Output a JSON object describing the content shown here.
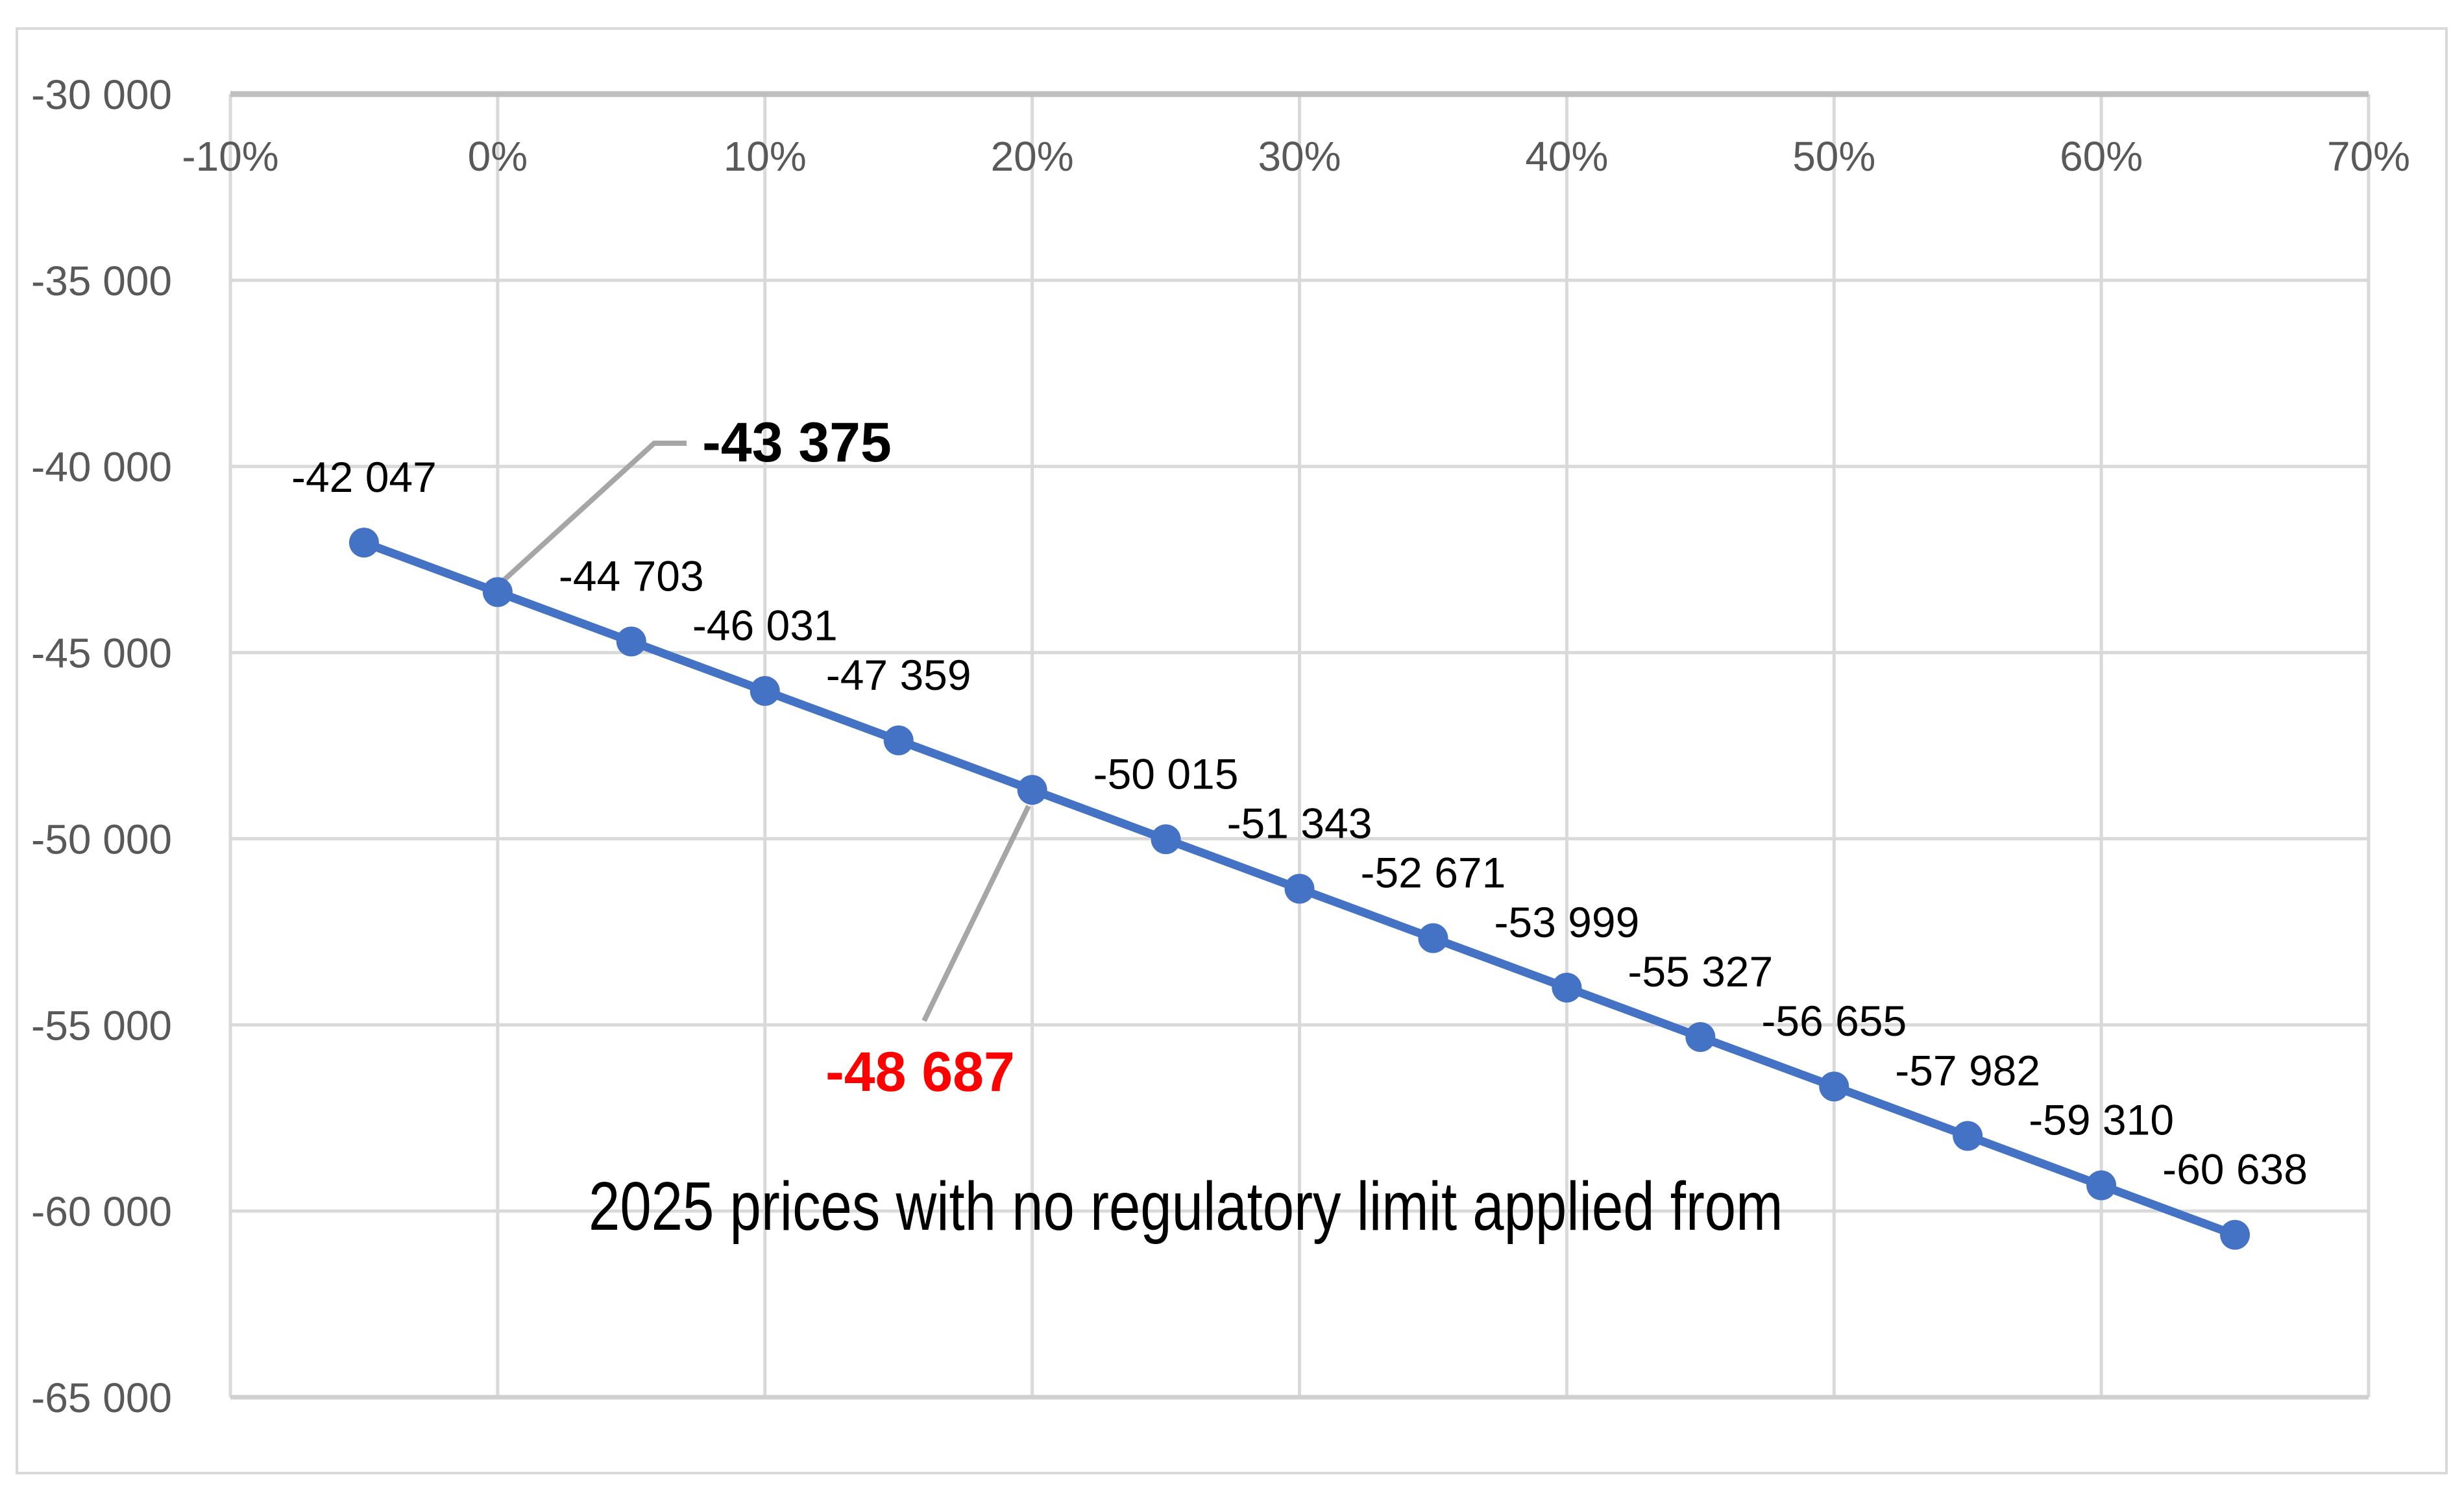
{
  "chart_data": {
    "type": "line",
    "title": "",
    "xlabel": "",
    "ylabel": "",
    "xlim": [
      -10,
      70
    ],
    "ylim": [
      -65000,
      -30000
    ],
    "grid": true,
    "legend_position": "none",
    "x_ticks": [
      {
        "value": -10,
        "label": "-10%"
      },
      {
        "value": 0,
        "label": "0%"
      },
      {
        "value": 10,
        "label": "10%"
      },
      {
        "value": 20,
        "label": "20%"
      },
      {
        "value": 30,
        "label": "30%"
      },
      {
        "value": 40,
        "label": "40%"
      },
      {
        "value": 50,
        "label": "50%"
      },
      {
        "value": 60,
        "label": "60%"
      },
      {
        "value": 70,
        "label": "70%"
      }
    ],
    "y_ticks": [
      {
        "value": -30000,
        "label": "-30 000"
      },
      {
        "value": -35000,
        "label": "-35 000"
      },
      {
        "value": -40000,
        "label": "-40 000"
      },
      {
        "value": -45000,
        "label": "-45 000"
      },
      {
        "value": -50000,
        "label": "-50 000"
      },
      {
        "value": -55000,
        "label": "-55 000"
      },
      {
        "value": -60000,
        "label": "-60 000"
      },
      {
        "value": -65000,
        "label": "-65 000"
      }
    ],
    "series": [
      {
        "name": "2025 prices with no regulatory limit applied",
        "color": "#4472C4",
        "points": [
          {
            "x": -5,
            "y": -42047,
            "label": "-42 047",
            "callout": false
          },
          {
            "x": 0,
            "y": -43375,
            "label": "-43 375",
            "callout": true
          },
          {
            "x": 5,
            "y": -44703,
            "label": "-44 703",
            "callout": false
          },
          {
            "x": 10,
            "y": -46031,
            "label": "-46 031",
            "callout": false
          },
          {
            "x": 15,
            "y": -47359,
            "label": "-47 359",
            "callout": false
          },
          {
            "x": 20,
            "y": -48687,
            "label": "-48 687",
            "callout": true
          },
          {
            "x": 25,
            "y": -50015,
            "label": "-50 015",
            "callout": false
          },
          {
            "x": 30,
            "y": -51343,
            "label": "-51 343",
            "callout": false
          },
          {
            "x": 35,
            "y": -52671,
            "label": "-52 671",
            "callout": false
          },
          {
            "x": 40,
            "y": -53999,
            "label": "-53 999",
            "callout": false
          },
          {
            "x": 45,
            "y": -55327,
            "label": "-55 327",
            "callout": false
          },
          {
            "x": 50,
            "y": -56655,
            "label": "-56 655",
            "callout": false
          },
          {
            "x": 55,
            "y": -57982,
            "label": "-57 982",
            "callout": false
          },
          {
            "x": 60,
            "y": -59310,
            "label": "-59 310",
            "callout": false
          },
          {
            "x": 65,
            "y": -60638,
            "label": "-60 638",
            "callout": false
          }
        ]
      }
    ],
    "callouts": [
      {
        "x": 0,
        "y": -43375,
        "label": "-43 375",
        "color": "#000000",
        "bold": true
      },
      {
        "x": 20,
        "y": -48687,
        "label": "-48 687",
        "color": "#FF0000",
        "bold": true
      }
    ],
    "annotation": "2025 prices with no regulatory limit applied from",
    "colors": {
      "line": "#4472C4",
      "marker": "#4472C4",
      "gridline": "#D9D9D9",
      "axis_line": "#BFBFBF",
      "tick_text": "#595959",
      "label_text": "#000000",
      "callout_red": "#FF0000",
      "leader_line": "#A6A6A6",
      "frame": "#D9D9D9",
      "background": "#FFFFFF"
    }
  }
}
